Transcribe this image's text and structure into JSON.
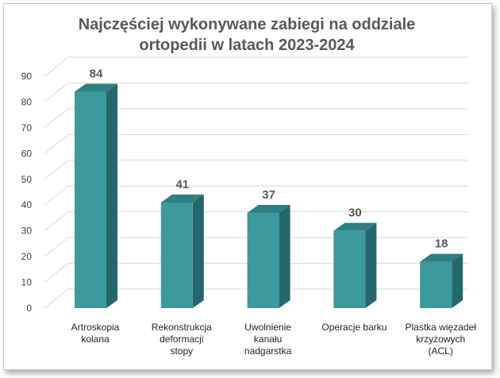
{
  "chart_data": {
    "type": "bar",
    "title_lines": [
      "Najczęściej wykonywane zabiegi na oddziale",
      "ortopedii w latach 2023-2024"
    ],
    "categories": [
      [
        "Artroskopia",
        "kolana"
      ],
      [
        "Rekonstrukcja",
        "deformacji",
        "stopy"
      ],
      [
        "Uwolnienie",
        "kanału",
        "nadgarstka"
      ],
      [
        "Operacje barku"
      ],
      [
        "Plastka więzadeł",
        "krzyżowych",
        "(ACL)"
      ]
    ],
    "values": [
      84,
      41,
      37,
      30,
      18
    ],
    "value_labels": [
      "84",
      "41",
      "37",
      "30",
      "18"
    ],
    "ylim": [
      0,
      90
    ],
    "yticks": [
      "0",
      "10",
      "20",
      "30",
      "40",
      "50",
      "60",
      "70",
      "80",
      "90"
    ],
    "grid": true,
    "legend": "none",
    "style": "3d-column"
  },
  "colors": {
    "bar_front": "#3a9a9c",
    "bar_side": "#25676a",
    "bar_top": "#2f7f82",
    "grid": "#d9d9d9",
    "text": "#595959"
  }
}
